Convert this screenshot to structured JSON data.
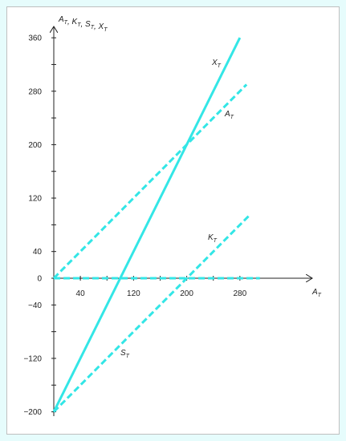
{
  "chart_data": {
    "type": "line",
    "ylabel": "A_T, K_T, S_T, X_T",
    "xlabel": "A_T",
    "xlim": [
      0,
      300
    ],
    "ylim": [
      -200,
      360
    ],
    "x_ticks": [
      40,
      120,
      200,
      280
    ],
    "y_ticks": [
      360,
      280,
      200,
      120,
      40,
      0,
      -40,
      -120,
      -200
    ],
    "grid": false,
    "line_color": "#33e6e6",
    "series": [
      {
        "name": "X_T",
        "style": "solid",
        "points": [
          [
            0,
            -200
          ],
          [
            280,
            360
          ]
        ]
      },
      {
        "name": "A_T",
        "style": "dashed",
        "points": [
          [
            0,
            0
          ],
          [
            290,
            290
          ]
        ]
      },
      {
        "name": "K_T",
        "style": "dashed",
        "points": [
          [
            0,
            -200
          ],
          [
            295,
            95
          ]
        ]
      },
      {
        "name": "S_T",
        "style": "dashed",
        "points": [
          [
            0,
            0
          ],
          [
            310,
            0
          ]
        ]
      }
    ]
  }
}
